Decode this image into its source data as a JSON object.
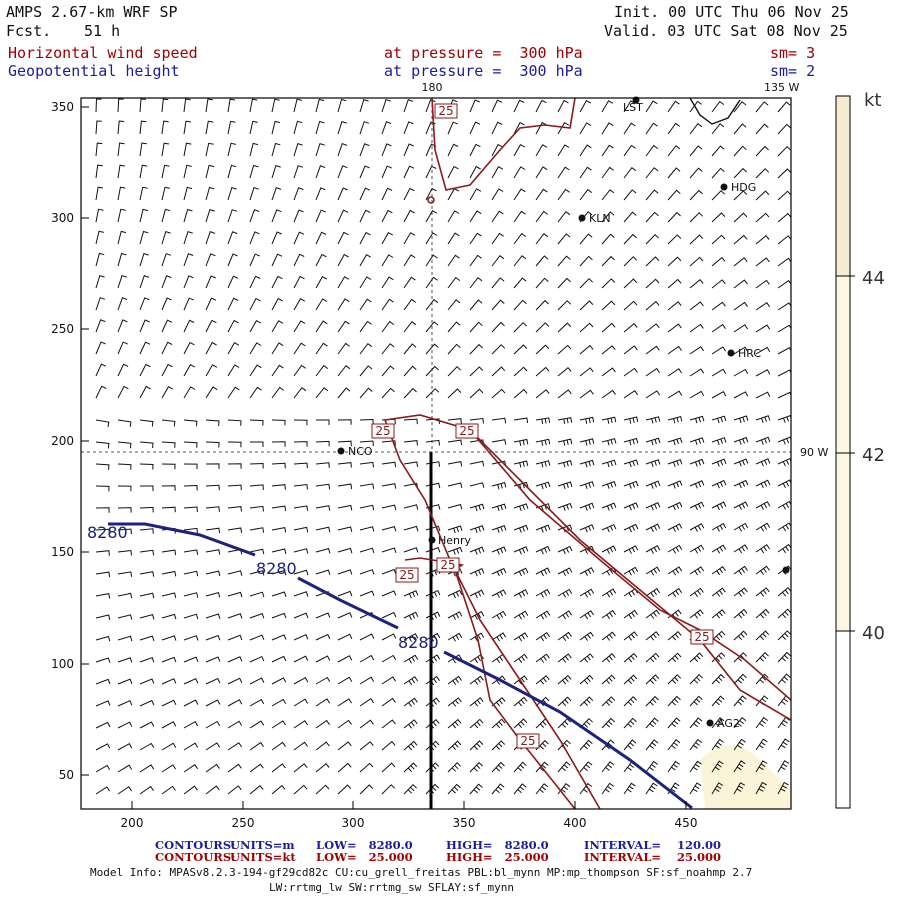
{
  "header": {
    "model": "AMPS 2.67-km WRF SP",
    "fcst_label": "Fcst.",
    "fcst_value": "51 h",
    "init": "Init. 00 UTC Thu 06 Nov 25",
    "valid": "Valid. 03 UTC Sat 08 Nov 25",
    "field1": {
      "name": "Horizontal wind speed",
      "level": "at pressure =  300 hPa",
      "sm": "sm= 3"
    },
    "field2": {
      "name": "Geopotential height",
      "level": "at pressure =  300 hPa",
      "sm": "sm= 2"
    }
  },
  "map": {
    "x_ticks": [
      "200",
      "250",
      "300",
      "350",
      "400",
      "450"
    ],
    "y_ticks": [
      "50",
      "100",
      "150",
      "200",
      "250",
      "300",
      "350"
    ],
    "meridian_top": "180",
    "corner_label": "135 W",
    "right_label": "90 W",
    "stations": [
      "HDG",
      "KLN",
      "HRC",
      "NCO",
      "Henry",
      "AG2",
      "LST"
    ],
    "height_contour_label": "8280",
    "speed_contour_label": "25"
  },
  "colorbar": {
    "unit": "kt",
    "labels": [
      "44",
      "42",
      "40"
    ],
    "colors": {
      "top": "#f5ecd2",
      "mid": "#fbf7e2",
      "low": "#ffffff"
    }
  },
  "footer": {
    "row1": {
      "title": "CONTOURS:",
      "units": "UNITS=m",
      "low": "LOW=   8280.0",
      "high": "HIGH=   8280.0",
      "interval": "INTERVAL=    120.00"
    },
    "row2": {
      "title": "CONTOURS:",
      "units": "UNITS=kt",
      "low": "LOW=   25.000",
      "high": "HIGH=   25.000",
      "interval": "INTERVAL=    25.000"
    },
    "model_info": "Model Info: MPASv8.2.3-194-gf29cd82c CU:cu_grell_freitas PBL:bl_mynn MP:mp_thompson SF:sf_noahmp 2.7",
    "model_info2": "LW:rrtmg_lw SW:rrtmg_sw SFLAY:sf_mynn"
  },
  "colors": {
    "height_contour": "#1a237e",
    "speed_contour": "#8b1a1a",
    "coast": "#111111"
  }
}
